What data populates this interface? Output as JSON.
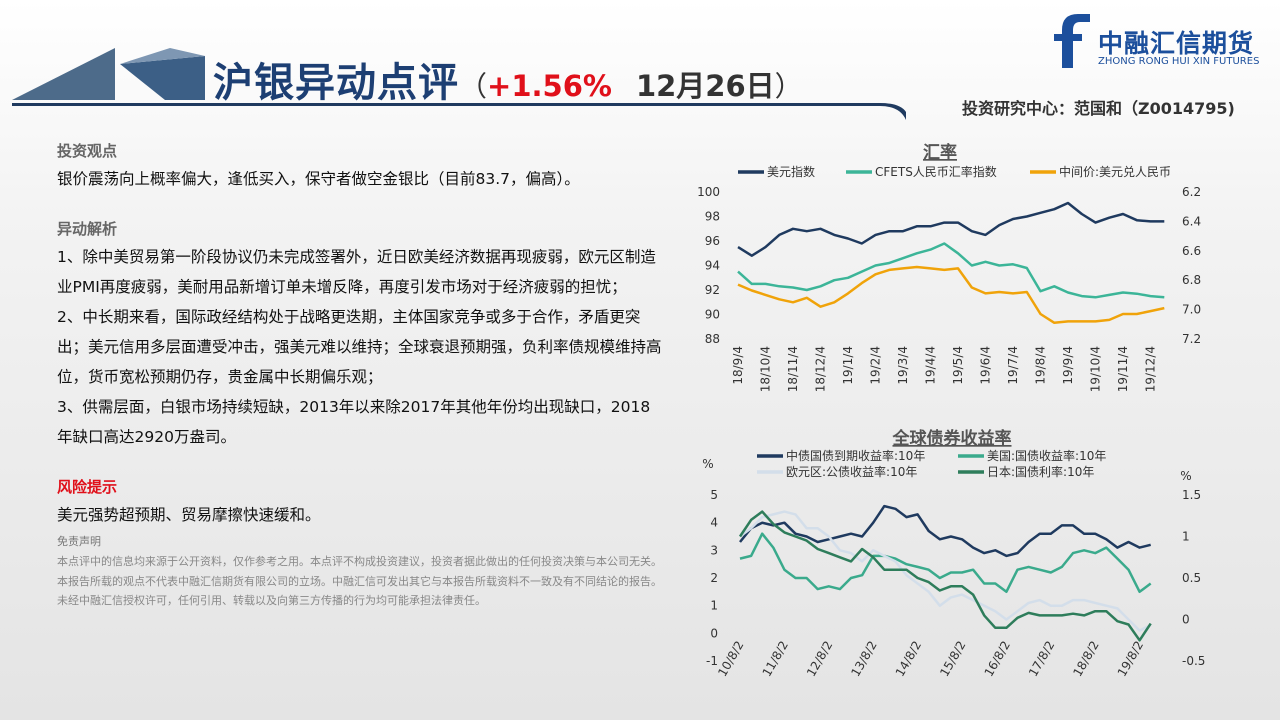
{
  "header": {
    "title": "沪银异动点评",
    "paren_open": "（",
    "change": "+1.56%",
    "date": "12月26日",
    "paren_close": "）",
    "author": "投资研究中心：范国和（Z0014795)"
  },
  "logo": {
    "name": "中融汇信期货",
    "pinyin": "ZHONG RONG HUI XIN FUTURES"
  },
  "sections": [
    {
      "heading": "投资观点",
      "paragraphs": [
        "银价震荡向上概率偏大，逢低买入，保守者做空金银比（目前83.7，偏高）。"
      ]
    },
    {
      "heading": "异动解析",
      "paragraphs": [
        "1、除中美贸易第一阶段协议仍未完成签署外，近日欧美经济数据再现疲弱，欧元区制造业PMI再度疲弱，美耐用品新增订单未增反降，再度引发市场对于经济疲弱的担忧；",
        "2、中长期来看，国际政经结构处于战略更迭期，主体国家竞争或多于合作，矛盾更突出；美元信用多层面遭受冲击，强美元难以维持；全球衰退预期强，负利率债规模维持高位，货币宽松预期仍存，贵金属中长期偏乐观；",
        "3、供需层面，白银市场持续短缺，2013年以来除2017年其他年份均出现缺口，2018年缺口高达2920万盎司。"
      ]
    },
    {
      "heading": "风险提示",
      "paragraphs": [
        "美元强势超预期、贸易摩擦快速缓和。"
      ]
    }
  ],
  "disclaimer": {
    "heading": "免责声明",
    "text": "本点评中的信息均来源于公开资料，仅作参考之用。本点评不构成投资建议，投资者据此做出的任何投资决策与本公司无关。本报告所载的观点不代表中融汇信期货有限公司的立场。中融汇信可发出其它与本报告所载资料不一致及有不同结论的报告。未经中融汇信授权许可，任何引用、转载以及向第三方传播的行为均可能承担法律责任。"
  },
  "chart_data": [
    {
      "type": "line",
      "title": "汇率",
      "categories": [
        "18/9/4",
        null,
        "18/10/4",
        null,
        "18/11/4",
        null,
        "18/12/4",
        null,
        "19/1/4",
        null,
        "19/2/4",
        null,
        "19/3/4",
        null,
        "19/4/4",
        null,
        "19/5/4",
        null,
        "19/6/4",
        null,
        "19/7/4",
        null,
        "19/8/4",
        null,
        "19/9/4",
        null,
        "19/10/4",
        null,
        "19/11/4",
        null,
        "19/12/4",
        null
      ],
      "series": [
        {
          "name": "美元指数",
          "color": "#1f3a5f",
          "values": [
            95.5,
            94.8,
            95.5,
            96.5,
            97,
            96.8,
            97,
            96.5,
            96.2,
            95.8,
            96.5,
            96.8,
            96.8,
            97.2,
            97.2,
            97.5,
            97.5,
            96.8,
            96.5,
            97.3,
            97.8,
            98,
            98.3,
            98.6,
            99.1,
            98.2,
            97.5,
            97.9,
            98.2,
            97.7,
            97.6,
            97.6
          ]
        },
        {
          "name": "CFETS人民币汇率指数",
          "color": "#3cb598",
          "values": [
            93.5,
            92.5,
            92.5,
            92.3,
            92.2,
            92,
            92.3,
            92.8,
            93,
            93.5,
            94,
            94.2,
            94.6,
            95,
            95.3,
            95.8,
            95,
            94,
            94.3,
            94,
            94.1,
            93.8,
            91.9,
            92.3,
            91.8,
            91.5,
            91.4,
            91.6,
            91.8,
            91.7,
            91.5,
            91.4
          ]
        },
        {
          "name": "中间价:美元兑人民币",
          "color": "#f0a30a",
          "axis": "y2",
          "values": [
            6.83,
            6.87,
            6.9,
            6.93,
            6.95,
            6.92,
            6.98,
            6.95,
            6.89,
            6.82,
            6.76,
            6.73,
            6.72,
            6.71,
            6.72,
            6.73,
            6.72,
            6.85,
            6.89,
            6.88,
            6.89,
            6.88,
            7.03,
            7.09,
            7.08,
            7.08,
            7.08,
            7.07,
            7.03,
            7.03,
            7.01,
            6.99
          ]
        }
      ],
      "ylim": [
        88,
        100
      ],
      "yticks": [
        88,
        90,
        92,
        94,
        96,
        98,
        100
      ],
      "y2lim": [
        6.2,
        7.2
      ],
      "y2ticks": [
        6.2,
        6.4,
        6.6,
        6.8,
        {
          "value": 7,
          "label": "7.0"
        },
        7.2
      ],
      "y2_inverted": true,
      "legend": "top",
      "grid": false
    },
    {
      "type": "line",
      "title": "全球债券收益率",
      "y_label": "%",
      "y2_label": "%",
      "categories": [
        "10/8/2",
        null,
        null,
        null,
        "11/8/2",
        null,
        null,
        null,
        "12/8/2",
        null,
        null,
        null,
        "13/8/2",
        null,
        null,
        null,
        "14/8/2",
        null,
        null,
        null,
        "15/8/2",
        null,
        null,
        null,
        "16/8/2",
        null,
        null,
        null,
        "17/8/2",
        null,
        null,
        null,
        "18/8/2",
        null,
        null,
        null,
        "19/8/2",
        null
      ],
      "series": [
        {
          "name": "中债国债到期收益率:10年",
          "color": "#1f3a5f",
          "values": [
            3.3,
            3.8,
            4.0,
            3.9,
            4.0,
            3.6,
            3.5,
            3.3,
            3.4,
            3.5,
            3.6,
            3.5,
            4.0,
            4.6,
            4.5,
            4.2,
            4.3,
            3.7,
            3.4,
            3.5,
            3.4,
            3.1,
            2.9,
            3.0,
            2.8,
            2.9,
            3.3,
            3.6,
            3.6,
            3.9,
            3.9,
            3.6,
            3.6,
            3.4,
            3.1,
            3.3,
            3.1,
            3.2
          ]
        },
        {
          "name": "美国:国债收益率:10年",
          "color": "#3aaa8c",
          "values": [
            2.7,
            2.8,
            3.6,
            3.1,
            2.3,
            2.0,
            2.0,
            1.6,
            1.7,
            1.6,
            2.0,
            2.1,
            2.8,
            2.8,
            2.7,
            2.5,
            2.4,
            2.3,
            2.0,
            2.2,
            2.2,
            2.3,
            1.8,
            1.8,
            1.5,
            2.3,
            2.4,
            2.3,
            2.2,
            2.4,
            2.9,
            3.0,
            2.9,
            3.1,
            2.7,
            2.3,
            1.5,
            1.8
          ]
        },
        {
          "name": "欧元区:公债收益率:10年",
          "color": "#d3deea",
          "values": [
            3.5,
            3.8,
            4.2,
            4.3,
            4.4,
            4.3,
            3.8,
            3.8,
            3.5,
            3.0,
            2.9,
            2.6,
            3.0,
            2.8,
            2.6,
            2.1,
            1.8,
            1.5,
            1.0,
            1.3,
            1.4,
            1.2,
            1.0,
            0.8,
            0.5,
            0.8,
            1.1,
            1.2,
            1.0,
            1.0,
            1.2,
            1.2,
            1.1,
            1.0,
            0.9,
            0.5,
            0.1,
            0.3
          ]
        },
        {
          "name": "日本:国债利率:10年",
          "color": "#2e7d5b",
          "axis": "y2",
          "values": [
            1.0,
            1.2,
            1.3,
            1.15,
            1.05,
            1.0,
            0.95,
            0.85,
            0.8,
            0.75,
            0.7,
            0.85,
            0.75,
            0.6,
            0.6,
            0.6,
            0.5,
            0.45,
            0.35,
            0.4,
            0.4,
            0.3,
            0.05,
            -0.1,
            -0.1,
            0.02,
            0.08,
            0.05,
            0.05,
            0.05,
            0.07,
            0.05,
            0.1,
            0.1,
            -0.02,
            -0.06,
            -0.25,
            -0.05
          ]
        }
      ],
      "ylim": [
        -1,
        5
      ],
      "yticks": [
        -1,
        0,
        1,
        2,
        3,
        4,
        5
      ],
      "y2lim": [
        -0.5,
        1.5
      ],
      "y2ticks": [
        -0.5,
        0,
        0.5,
        1,
        1.5
      ],
      "legend": "top",
      "grid": false
    }
  ]
}
